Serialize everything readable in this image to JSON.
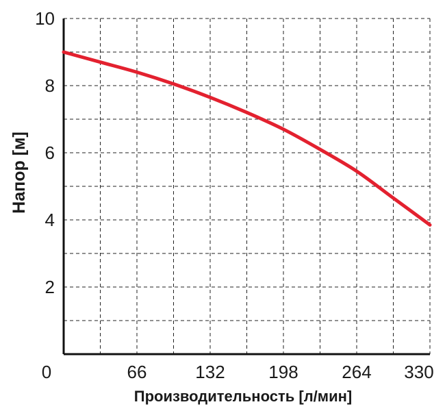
{
  "chart_data": {
    "type": "line",
    "xlabel": "Производительность [л/мин]",
    "ylabel": "Напор [м]",
    "xlim": [
      0,
      330
    ],
    "ylim": [
      0,
      10
    ],
    "x_ticks": [
      "0",
      "66",
      "132",
      "198",
      "264",
      "330"
    ],
    "y_ticks": [
      "2",
      "4",
      "6",
      "8",
      "10"
    ],
    "grid": true,
    "grid_style": "dashed",
    "series": [
      {
        "color": "#e3212f",
        "x": [
          0,
          33,
          66,
          99,
          132,
          165,
          198,
          231,
          264,
          297,
          330
        ],
        "y": [
          9.0,
          8.7,
          8.4,
          8.05,
          7.65,
          7.2,
          6.7,
          6.1,
          5.45,
          4.65,
          3.85
        ]
      }
    ]
  }
}
